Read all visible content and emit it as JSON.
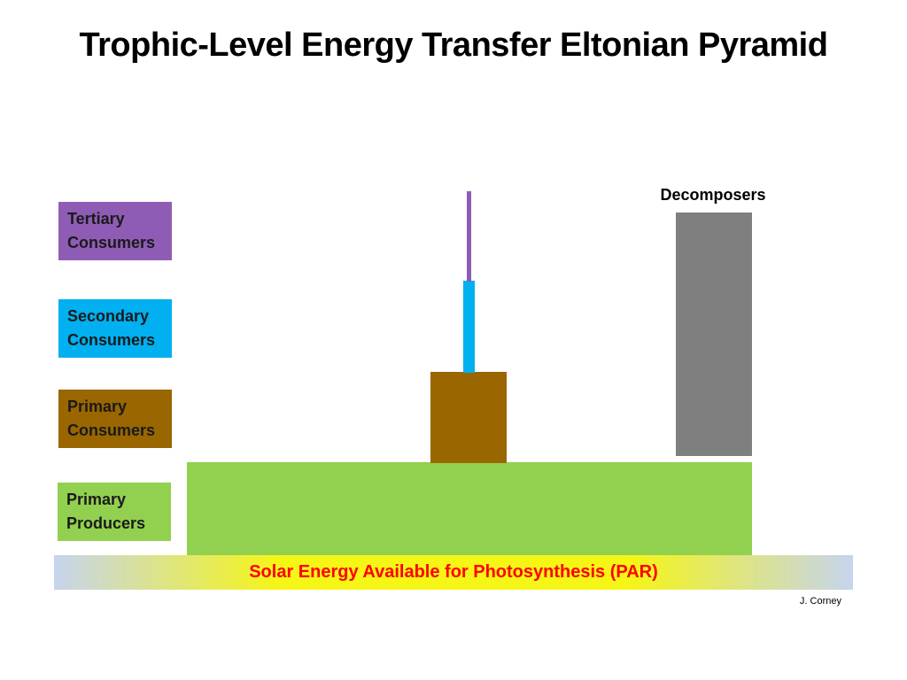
{
  "title": "Trophic-Level Energy Transfer Eltonian Pyramid",
  "colors": {
    "tertiary": "#8e5cb5",
    "secondary": "#00b0f0",
    "primary_consumers": "#996600",
    "primary_producers": "#92d050",
    "decomposers": "#7f7f7f",
    "solar_text": "#ff0000",
    "solar_center": "#f5f516",
    "solar_edge": "#c6d4ee"
  },
  "legend": [
    {
      "id": "tertiary",
      "lines": [
        "Tertiary",
        "Consumers"
      ],
      "color": "#8e5cb5"
    },
    {
      "id": "secondary",
      "lines": [
        "Secondary",
        "Consumers"
      ],
      "color": "#00b0f0"
    },
    {
      "id": "primary-consumers",
      "lines": [
        "Primary",
        "Consumers"
      ],
      "color": "#996600"
    },
    {
      "id": "primary-producers",
      "lines": [
        "Primary",
        "Producers"
      ],
      "color": "#92d050"
    }
  ],
  "decomposers_label": "Decomposers",
  "solar_label": "Solar Energy Available for Photosynthesis (PAR)",
  "credit": "J. Corney"
}
